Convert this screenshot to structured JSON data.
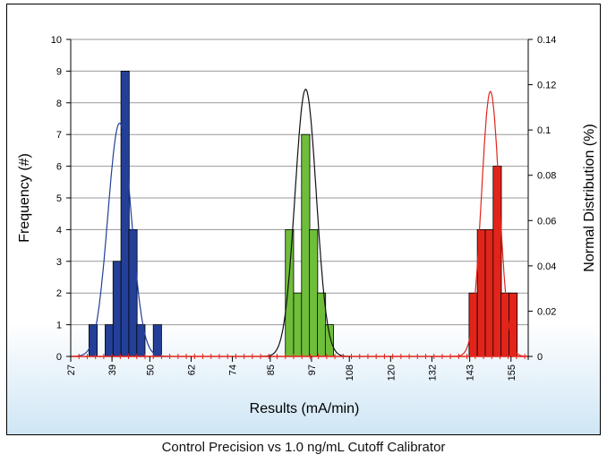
{
  "caption": "Control Precision vs 1.0 ng/mL Cutoff Calibrator",
  "chart_data": {
    "type": "bar",
    "title": "",
    "xlabel": "Results (mA/min)",
    "ylabel": "Frequency (#)",
    "y2label": "Normal Distribution (%)",
    "ylim": [
      0,
      10
    ],
    "y2lim": [
      0,
      0.14
    ],
    "yticks": [
      "0",
      "1",
      "2",
      "3",
      "4",
      "5",
      "6",
      "7",
      "8",
      "9",
      "10"
    ],
    "y2ticks": [
      "0",
      "0.02",
      "0.04",
      "0.06",
      "0.08",
      "0.1",
      "0.12",
      "0.14"
    ],
    "xlim": [
      27,
      160
    ],
    "xticks": [
      27,
      39,
      50,
      62,
      74,
      85,
      97,
      108,
      120,
      132,
      143,
      155
    ],
    "grid": true,
    "colors": {
      "blue": "#233f97",
      "green": "#6fbe3a",
      "red": "#e3241b",
      "black": "#111111",
      "grid": "#999999",
      "baseline_marker": "#e3241b"
    },
    "series": [
      {
        "color": "blue",
        "bin_width": 2.4,
        "bins": [
          {
            "x": 33.5,
            "count": 1
          },
          {
            "x": 38.2,
            "count": 1
          },
          {
            "x": 40.5,
            "count": 3
          },
          {
            "x": 42.8,
            "count": 9
          },
          {
            "x": 45.1,
            "count": 4
          },
          {
            "x": 47.4,
            "count": 1
          },
          {
            "x": 52.2,
            "count": 1
          }
        ],
        "normal": {
          "mean": 41.2,
          "sd": 3.4,
          "peak": 0.103
        }
      },
      {
        "color": "green",
        "bin_width": 2.4,
        "bins": [
          {
            "x": 90.6,
            "count": 4
          },
          {
            "x": 93.0,
            "count": 2
          },
          {
            "x": 95.3,
            "count": 7
          },
          {
            "x": 97.6,
            "count": 4
          },
          {
            "x": 99.9,
            "count": 2
          },
          {
            "x": 102.2,
            "count": 1
          }
        ],
        "normal": {
          "mean": 95.3,
          "sd": 3.1,
          "peak": 0.118
        }
      },
      {
        "color": "red",
        "bin_width": 2.4,
        "bins": [
          {
            "x": 144.0,
            "count": 2
          },
          {
            "x": 146.4,
            "count": 4
          },
          {
            "x": 148.7,
            "count": 4
          },
          {
            "x": 151.0,
            "count": 6
          },
          {
            "x": 153.3,
            "count": 2
          },
          {
            "x": 155.6,
            "count": 2
          }
        ],
        "normal": {
          "mean": 149.0,
          "sd": 2.6,
          "peak": 0.117
        }
      }
    ]
  }
}
